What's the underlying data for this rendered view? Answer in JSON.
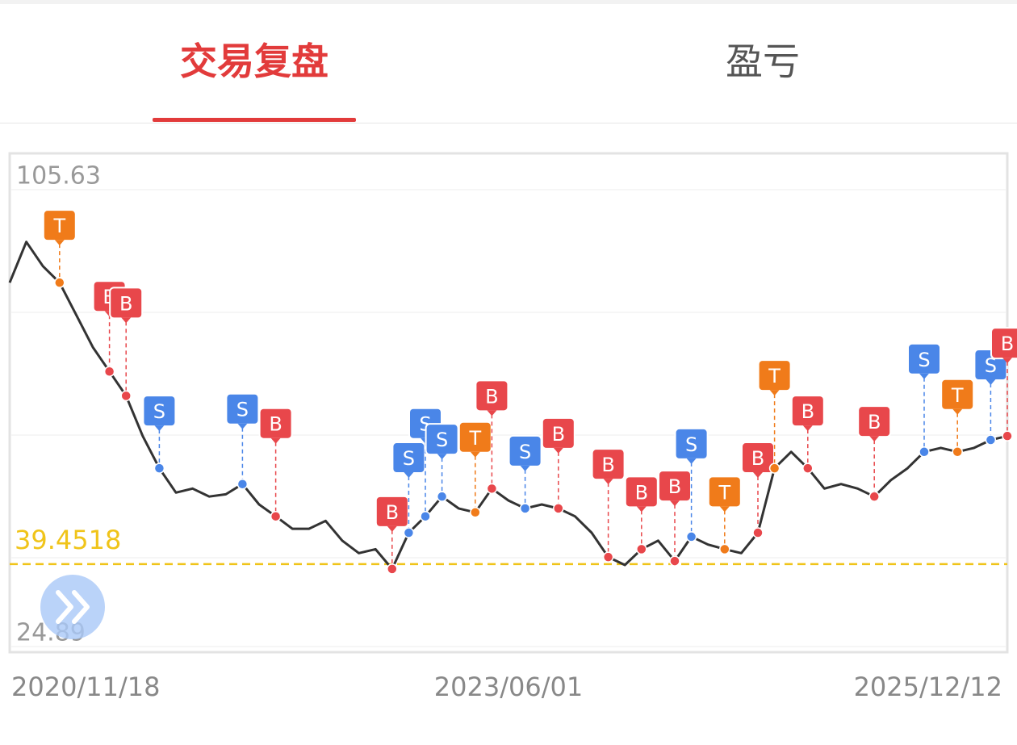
{
  "tabs": [
    "交易复盘",
    "盈亏"
  ],
  "chart_data": {
    "type": "line",
    "categories": [
      "2020/11/18",
      null,
      null,
      null,
      null,
      null,
      null,
      null,
      null,
      null,
      null,
      null,
      null,
      null,
      null,
      null,
      null,
      null,
      null,
      null,
      null,
      null,
      null,
      null,
      null,
      null,
      null,
      null,
      null,
      null,
      "2023/06/01",
      null,
      null,
      null,
      null,
      null,
      null,
      null,
      null,
      null,
      null,
      null,
      null,
      null,
      null,
      null,
      null,
      null,
      null,
      null,
      null,
      null,
      null,
      null,
      null,
      null,
      null,
      null,
      null,
      null,
      "2025/12/12"
    ],
    "values": [
      89.2,
      96.4,
      92.1,
      89.2,
      83.5,
      77.8,
      73.5,
      69.2,
      62.1,
      56.4,
      52.1,
      52.8,
      51.4,
      51.8,
      53.6,
      50.0,
      47.9,
      45.7,
      45.7,
      47.1,
      43.6,
      41.4,
      42.1,
      38.6,
      45.0,
      47.9,
      51.4,
      49.3,
      48.6,
      52.8,
      50.7,
      49.3,
      50.0,
      49.3,
      47.9,
      45.0,
      40.7,
      39.3,
      42.1,
      43.6,
      40.0,
      44.3,
      42.9,
      42.1,
      41.4,
      45.0,
      56.4,
      59.3,
      56.4,
      52.8,
      53.6,
      52.8,
      51.4,
      54.3,
      56.4,
      59.3,
      60.0,
      59.3,
      60.0,
      61.4,
      62.1
    ],
    "color": "#333333",
    "ylim": [
      24.89,
      105.63
    ],
    "yticks": [
      24.89,
      105.63
    ],
    "reference_line": 39.4518,
    "reference_color": "#f0c419",
    "marker_colors": {
      "B": "#e8474b",
      "S": "#4a86e8",
      "T": "#f07b1a"
    },
    "trades": [
      {
        "index": 3,
        "label": "T"
      },
      {
        "index": 6,
        "label": "B"
      },
      {
        "index": 7,
        "label": "B"
      },
      {
        "index": 9,
        "label": "S"
      },
      {
        "index": 14,
        "label": "S"
      },
      {
        "index": 16,
        "label": "B"
      },
      {
        "index": 23,
        "label": "B"
      },
      {
        "index": 24,
        "label": "S"
      },
      {
        "index": 25,
        "label": "S"
      },
      {
        "index": 26,
        "label": "S"
      },
      {
        "index": 28,
        "label": "T"
      },
      {
        "index": 29,
        "label": "B"
      },
      {
        "index": 31,
        "label": "S"
      },
      {
        "index": 33,
        "label": "B"
      },
      {
        "index": 36,
        "label": "B"
      },
      {
        "index": 38,
        "label": "B"
      },
      {
        "index": 40,
        "label": "B"
      },
      {
        "index": 41,
        "label": "S"
      },
      {
        "index": 43,
        "label": "T"
      },
      {
        "index": 45,
        "label": "B"
      },
      {
        "index": 46,
        "label": "T"
      },
      {
        "index": 48,
        "label": "B"
      },
      {
        "index": 52,
        "label": "B"
      },
      {
        "index": 55,
        "label": "S"
      },
      {
        "index": 57,
        "label": "T"
      },
      {
        "index": 59,
        "label": "S"
      },
      {
        "index": 60,
        "label": "B"
      }
    ]
  }
}
